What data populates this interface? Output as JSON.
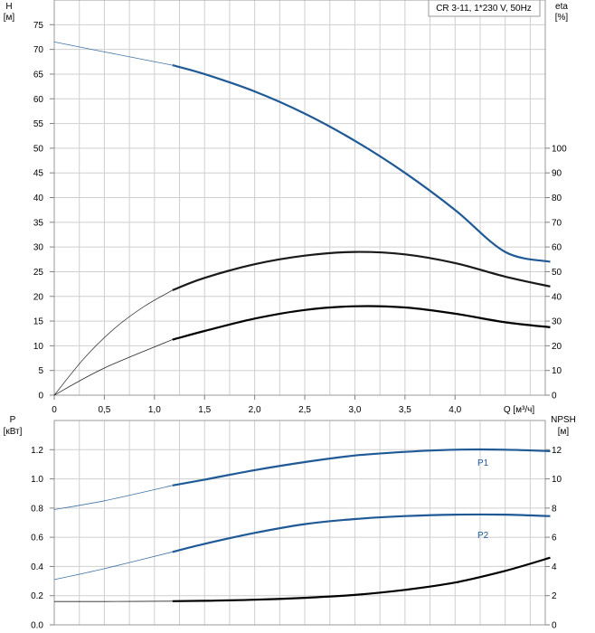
{
  "chart_data": [
    {
      "type": "line",
      "title": "CR 3-11, 1*230 V, 50Hz",
      "left_axis": {
        "label_line1": "H",
        "label_line2": "[м]",
        "ylim": [
          0,
          80
        ],
        "ticks": [
          0,
          5,
          10,
          15,
          20,
          25,
          30,
          35,
          40,
          45,
          50,
          55,
          60,
          65,
          70,
          75
        ]
      },
      "right_axis": {
        "label_line1": "eta",
        "label_line2": "[%]",
        "ylim": [
          0,
          160
        ],
        "ticks": [
          0,
          10,
          20,
          30,
          40,
          50,
          60,
          70,
          80,
          90,
          100
        ]
      },
      "x_axis": {
        "label": "Q [м³/ч]",
        "xlim": [
          0,
          4.9
        ],
        "ticks": [
          0,
          0.5,
          1.0,
          1.5,
          2.0,
          2.5,
          3.0,
          3.5,
          4.0
        ],
        "tick_labels": [
          "0",
          "0,5",
          "1,0",
          "1,5",
          "2,0",
          "2,5",
          "3,0",
          "3,5",
          "4,0"
        ]
      },
      "grid": true,
      "operating_range": [
        1.18,
        4.95
      ],
      "series": [
        {
          "axis": "left",
          "color": "#1f5a96",
          "x": [
            0,
            0.5,
            1.18,
            1.5,
            2.0,
            2.5,
            3.0,
            3.5,
            4.0,
            4.5,
            4.95
          ],
          "y": [
            71.5,
            69.5,
            66.8,
            65.0,
            61.5,
            57.0,
            51.5,
            45.0,
            37.5,
            29.0,
            27.0
          ]
        },
        {
          "axis": "right",
          "color": "#1a1a1a",
          "x": [
            0,
            0.3,
            0.6,
            0.9,
            1.18,
            1.5,
            2.0,
            2.5,
            3.0,
            3.5,
            4.0,
            4.5,
            4.95
          ],
          "y": [
            0,
            15,
            27,
            36,
            42.5,
            47.5,
            53,
            56.5,
            58,
            57,
            53.5,
            48,
            44
          ]
        },
        {
          "axis": "right",
          "color": "#000000",
          "x": [
            0,
            0.5,
            1.18,
            1.5,
            2.0,
            2.5,
            3.0,
            3.5,
            4.0,
            4.5,
            4.95
          ],
          "y": [
            0,
            11,
            22.5,
            26,
            31,
            34.5,
            36,
            35.5,
            33,
            29.5,
            27.5
          ]
        }
      ]
    },
    {
      "type": "line",
      "left_axis": {
        "label_line1": "P",
        "label_line2": "[кВт]",
        "ylim": [
          0,
          1.4
        ],
        "ticks": [
          0.0,
          0.2,
          0.4,
          0.6,
          0.8,
          1.0,
          1.2
        ],
        "tick_labels": [
          "0.0",
          "0.2",
          "0.4",
          "0.6",
          "0.8",
          "1.0",
          "1.2"
        ]
      },
      "right_axis": {
        "label_line1": "NPSH",
        "label_line2": "[м]",
        "ylim": [
          0,
          14
        ],
        "ticks": [
          0,
          2,
          4,
          6,
          8,
          10,
          12
        ]
      },
      "x_axis": {
        "xlim": [
          0,
          4.9
        ],
        "ticks": [
          0,
          0.5,
          1.0,
          1.5,
          2.0,
          2.5,
          3.0,
          3.5,
          4.0
        ]
      },
      "grid": true,
      "operating_range": [
        1.18,
        4.95
      ],
      "series": [
        {
          "name": "P1",
          "axis": "left",
          "color": "#1f5a96",
          "x": [
            0,
            0.5,
            1.18,
            1.5,
            2.0,
            2.5,
            3.0,
            3.5,
            4.0,
            4.5,
            4.95
          ],
          "y": [
            0.79,
            0.85,
            0.955,
            0.995,
            1.06,
            1.115,
            1.16,
            1.185,
            1.2,
            1.2,
            1.19
          ]
        },
        {
          "name": "P2",
          "axis": "left",
          "color": "#1f5a96",
          "x": [
            0,
            0.5,
            1.18,
            1.5,
            2.0,
            2.5,
            3.0,
            3.5,
            4.0,
            4.5,
            4.95
          ],
          "y": [
            0.31,
            0.385,
            0.5,
            0.555,
            0.63,
            0.69,
            0.725,
            0.745,
            0.755,
            0.755,
            0.745
          ]
        },
        {
          "axis": "right",
          "color": "#000000",
          "x": [
            0,
            0.5,
            1.18,
            1.5,
            2.0,
            2.5,
            3.0,
            3.5,
            4.0,
            4.5,
            4.95
          ],
          "y": [
            1.6,
            1.6,
            1.62,
            1.65,
            1.72,
            1.85,
            2.05,
            2.4,
            2.9,
            3.7,
            4.6
          ]
        }
      ]
    }
  ]
}
